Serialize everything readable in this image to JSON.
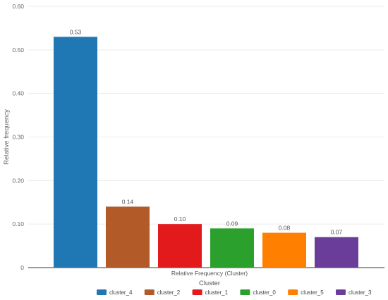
{
  "chart_data": {
    "type": "bar",
    "categories": [
      "cluster_4",
      "cluster_2",
      "cluster_1",
      "cluster_0",
      "cluster_5",
      "cluster_3"
    ],
    "values": [
      0.53,
      0.14,
      0.1,
      0.09,
      0.08,
      0.07
    ],
    "data_labels": [
      "0.53",
      "0.14",
      "0.10",
      "0.09",
      "0.08",
      "0.07"
    ],
    "colors": [
      "#1f77b4",
      "#b35a29",
      "#e31a1c",
      "#2ca02c",
      "#ff7f00",
      "#6a3d9a"
    ],
    "ylim": [
      0,
      0.6
    ],
    "yticks": [
      "0",
      "0.10",
      "0.20",
      "0.30",
      "0.40",
      "0.50",
      "0.60"
    ],
    "ylabel": "Relative frequency",
    "x_subtitle": "Relative Frequency (Cluster)",
    "xlabel": "Cluster",
    "legend": [
      "cluster_4",
      "cluster_2",
      "cluster_1",
      "cluster_0",
      "cluster_5",
      "cluster_3"
    ],
    "legend_position": "bottom",
    "grid": true
  }
}
